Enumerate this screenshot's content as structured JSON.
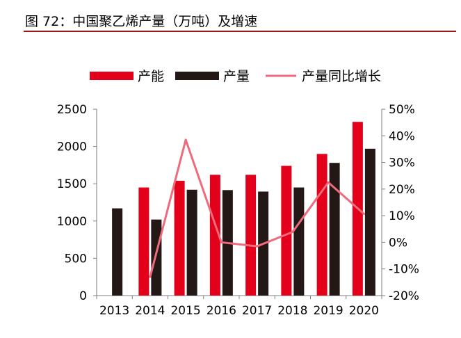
{
  "title": "图 72：中国聚乙烯产量（万吨）及增速",
  "chart_data": {
    "type": "bar",
    "title": "图 72：中国聚乙烯产量（万吨）及增速",
    "categories": [
      "2013",
      "2014",
      "2015",
      "2016",
      "2017",
      "2018",
      "2019",
      "2020"
    ],
    "series": [
      {
        "name": "产能",
        "type": "bar",
        "axis": "left",
        "color": "#e3001b",
        "values": [
          null,
          1450,
          1540,
          1620,
          1620,
          1740,
          1900,
          2330
        ]
      },
      {
        "name": "产量",
        "type": "bar",
        "axis": "left",
        "color": "#231815",
        "values": [
          1170,
          1020,
          1420,
          1415,
          1395,
          1450,
          1780,
          1970
        ]
      },
      {
        "name": "产量同比增长",
        "type": "line",
        "axis": "right",
        "color": "#ee6a7c",
        "values": [
          null,
          -13.0,
          38.5,
          0.0,
          -1.5,
          3.9,
          22.5,
          10.7
        ]
      }
    ],
    "y_left": {
      "min": 0,
      "max": 2500,
      "ticks": [
        "0",
        "500",
        "1000",
        "1500",
        "2000",
        "2500"
      ]
    },
    "y_right": {
      "min": -20,
      "max": 50,
      "ticks": [
        "-20%",
        "-10%",
        "0%",
        "10%",
        "20%",
        "30%",
        "40%",
        "50%"
      ]
    },
    "legend_position": "top",
    "grid": false
  }
}
